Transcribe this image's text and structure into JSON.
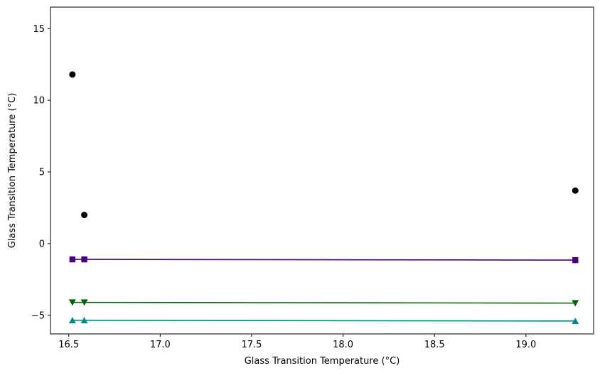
{
  "chart_data": {
    "type": "scatter",
    "title": "",
    "xlabel": "Glass Transition Temperature (°C)",
    "ylabel": "Glass Transition Temperature (°C)",
    "xlim": [
      16.4,
      19.37
    ],
    "ylim": [
      -6.3,
      16.5
    ],
    "xticks": [
      16.5,
      17.0,
      17.5,
      18.0,
      18.5,
      19.0
    ],
    "xtick_labels": [
      "16.5",
      "17.0",
      "17.5",
      "18.0",
      "18.5",
      "19.0"
    ],
    "yticks": [
      -5,
      0,
      5,
      10,
      15
    ],
    "ytick_labels": [
      "−5",
      "0",
      "5",
      "10",
      "15"
    ],
    "grid": false,
    "legend": "none",
    "series": [
      {
        "marker": "circle",
        "color": "#000000",
        "line": false,
        "x": [
          16.52,
          16.585,
          19.27
        ],
        "y": [
          11.8,
          2.0,
          3.7
        ]
      },
      {
        "marker": "square",
        "color": "#4b0082",
        "line": true,
        "x": [
          16.52,
          16.585,
          19.27
        ],
        "y": [
          -1.1,
          -1.1,
          -1.15
        ]
      },
      {
        "marker": "triangle-down",
        "color": "#006400",
        "line": true,
        "x": [
          16.52,
          16.585,
          19.27
        ],
        "y": [
          -4.1,
          -4.1,
          -4.15
        ]
      },
      {
        "marker": "triangle-up",
        "color": "#008b8b",
        "line": true,
        "x": [
          16.52,
          16.585,
          19.27
        ],
        "y": [
          -5.35,
          -5.35,
          -5.4
        ]
      }
    ]
  }
}
